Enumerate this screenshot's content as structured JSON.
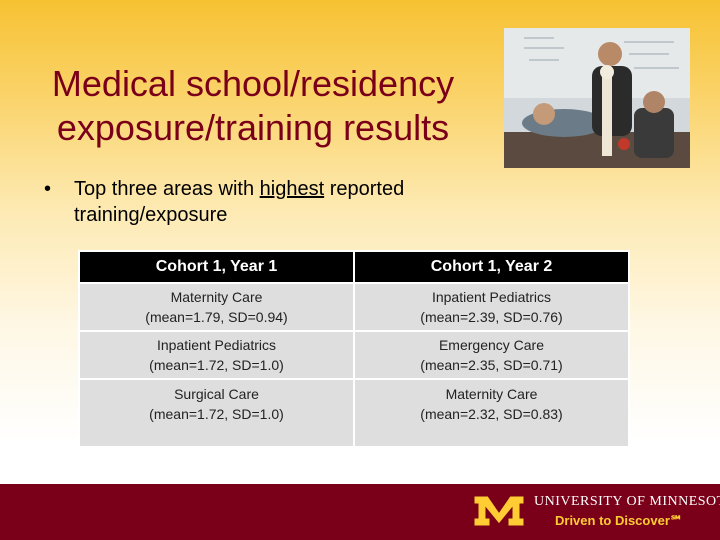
{
  "slide": {
    "title_line1": "Medical school/residency",
    "title_line2": "exposure/training results"
  },
  "bullet": {
    "prefix": "Top three areas with ",
    "emphasis": "highest",
    "suffix": " reported training/exposure"
  },
  "table": {
    "headers": [
      "Cohort 1, Year 1",
      "Cohort 1, Year 2"
    ],
    "rows": [
      [
        {
          "name": "Maternity Care",
          "stats": "(mean=1.79, SD=0.94)"
        },
        {
          "name": "Inpatient Pediatrics",
          "stats": "(mean=2.39, SD=0.76)"
        }
      ],
      [
        {
          "name": "Inpatient Pediatrics",
          "stats": "(mean=1.72, SD=1.0)"
        },
        {
          "name": "Emergency Care",
          "stats": "(mean=2.35, SD=0.71)"
        }
      ],
      [
        {
          "name": "Surgical Care",
          "stats": "(mean=1.72, SD=1.0)"
        },
        {
          "name": "Maternity Care",
          "stats": "(mean=2.32, SD=0.83)"
        }
      ]
    ]
  },
  "footer": {
    "university": "UNIVERSITY OF MINNESOTA",
    "tagline": "Driven to Discover℠"
  },
  "colors": {
    "maroon": "#7a0019",
    "gold": "#ffcc33"
  }
}
